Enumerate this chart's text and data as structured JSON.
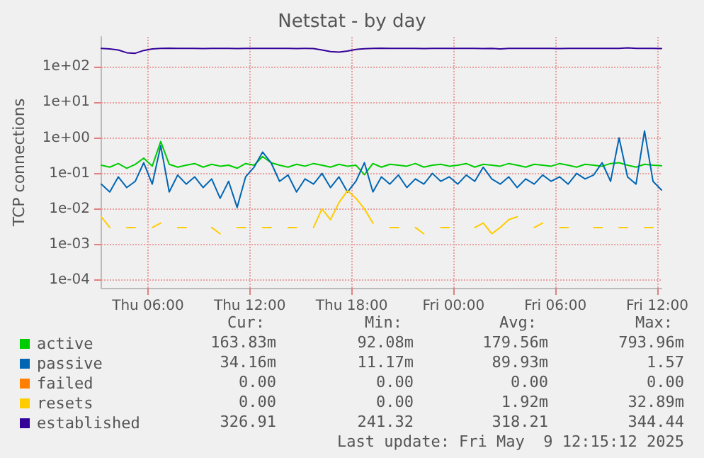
{
  "chart_data": {
    "type": "line",
    "title": "Netstat - by day",
    "ylabel": "TCP connections",
    "log": "y",
    "grid": true,
    "legend": "bottom",
    "xlim": [
      "2025-05-08T03:15",
      "2025-05-09T12:15"
    ],
    "xticks": [
      {
        "value": "2025-05-08T06:00",
        "label": "Thu 06:00"
      },
      {
        "value": "2025-05-08T12:00",
        "label": "Thu 12:00"
      },
      {
        "value": "2025-05-08T18:00",
        "label": "Thu 18:00"
      },
      {
        "value": "2025-05-09T00:00",
        "label": "Fri 00:00"
      },
      {
        "value": "2025-05-09T06:00",
        "label": "Fri 06:00"
      },
      {
        "value": "2025-05-09T12:00",
        "label": "Fri 12:00"
      }
    ],
    "ylim": [
      6e-05,
      700
    ],
    "yticks": [
      {
        "value": 0.0001,
        "label": "1e-04"
      },
      {
        "value": 0.001,
        "label": "1e-03"
      },
      {
        "value": 0.01,
        "label": "1e-02"
      },
      {
        "value": 0.1,
        "label": "1e-01"
      },
      {
        "value": 1,
        "label": "1e+00"
      },
      {
        "value": 10,
        "label": "1e+01"
      },
      {
        "value": 100,
        "label": "1e+02"
      }
    ],
    "x": [
      "2025-05-08T03:15",
      "2025-05-08T03:45",
      "2025-05-08T04:15",
      "2025-05-08T04:45",
      "2025-05-08T05:15",
      "2025-05-08T05:45",
      "2025-05-08T06:15",
      "2025-05-08T06:45",
      "2025-05-08T07:15",
      "2025-05-08T07:45",
      "2025-05-08T08:15",
      "2025-05-08T08:45",
      "2025-05-08T09:15",
      "2025-05-08T09:45",
      "2025-05-08T10:15",
      "2025-05-08T10:45",
      "2025-05-08T11:15",
      "2025-05-08T11:45",
      "2025-05-08T12:15",
      "2025-05-08T12:45",
      "2025-05-08T13:15",
      "2025-05-08T13:45",
      "2025-05-08T14:15",
      "2025-05-08T14:45",
      "2025-05-08T15:15",
      "2025-05-08T15:45",
      "2025-05-08T16:15",
      "2025-05-08T16:45",
      "2025-05-08T17:15",
      "2025-05-08T17:45",
      "2025-05-08T18:15",
      "2025-05-08T18:45",
      "2025-05-08T19:15",
      "2025-05-08T19:45",
      "2025-05-08T20:15",
      "2025-05-08T20:45",
      "2025-05-08T21:15",
      "2025-05-08T21:45",
      "2025-05-08T22:15",
      "2025-05-08T22:45",
      "2025-05-08T23:15",
      "2025-05-08T23:45",
      "2025-05-09T00:15",
      "2025-05-09T00:45",
      "2025-05-09T01:15",
      "2025-05-09T01:45",
      "2025-05-09T02:15",
      "2025-05-09T02:45",
      "2025-05-09T03:15",
      "2025-05-09T03:45",
      "2025-05-09T04:15",
      "2025-05-09T04:45",
      "2025-05-09T05:15",
      "2025-05-09T05:45",
      "2025-05-09T06:15",
      "2025-05-09T06:45",
      "2025-05-09T07:15",
      "2025-05-09T07:45",
      "2025-05-09T08:15",
      "2025-05-09T08:45",
      "2025-05-09T09:15",
      "2025-05-09T09:45",
      "2025-05-09T10:15",
      "2025-05-09T10:45",
      "2025-05-09T11:15",
      "2025-05-09T11:45",
      "2025-05-09T12:15"
    ],
    "series": [
      {
        "name": "active",
        "color": "#00cc00",
        "values": [
          0.17,
          0.15,
          0.19,
          0.14,
          0.18,
          0.27,
          0.16,
          0.79,
          0.18,
          0.15,
          0.17,
          0.19,
          0.15,
          0.18,
          0.16,
          0.17,
          0.14,
          0.19,
          0.17,
          0.3,
          0.2,
          0.17,
          0.15,
          0.18,
          0.16,
          0.19,
          0.17,
          0.15,
          0.18,
          0.16,
          0.17,
          0.092,
          0.19,
          0.15,
          0.18,
          0.17,
          0.16,
          0.19,
          0.15,
          0.17,
          0.18,
          0.16,
          0.17,
          0.19,
          0.15,
          0.18,
          0.17,
          0.16,
          0.19,
          0.17,
          0.15,
          0.18,
          0.17,
          0.16,
          0.19,
          0.17,
          0.15,
          0.18,
          0.17,
          0.16,
          0.19,
          0.2,
          0.17,
          0.15,
          0.18,
          0.17,
          0.16383
        ]
      },
      {
        "name": "passive",
        "color": "#0066b3",
        "values": [
          0.05,
          0.03,
          0.08,
          0.04,
          0.06,
          0.2,
          0.05,
          0.6,
          0.03,
          0.09,
          0.05,
          0.08,
          0.04,
          0.07,
          0.02,
          0.06,
          0.011,
          0.08,
          0.15,
          0.4,
          0.2,
          0.06,
          0.09,
          0.03,
          0.07,
          0.05,
          0.1,
          0.04,
          0.08,
          0.03,
          0.06,
          0.2,
          0.03,
          0.08,
          0.05,
          0.09,
          0.04,
          0.07,
          0.05,
          0.1,
          0.06,
          0.08,
          0.05,
          0.09,
          0.06,
          0.15,
          0.07,
          0.05,
          0.08,
          0.04,
          0.07,
          0.05,
          0.09,
          0.06,
          0.08,
          0.05,
          0.1,
          0.07,
          0.09,
          0.2,
          0.06,
          1.0,
          0.08,
          0.05,
          1.57,
          0.06,
          0.03416
        ]
      },
      {
        "name": "failed",
        "color": "#ff8000",
        "values": [
          null,
          null,
          null,
          null,
          null,
          null,
          null,
          null,
          null,
          null,
          null,
          null,
          null,
          null,
          null,
          null,
          null,
          null,
          null,
          null,
          null,
          null,
          null,
          null,
          null,
          null,
          null,
          null,
          null,
          null,
          null,
          null,
          null,
          null,
          null,
          null,
          null,
          null,
          null,
          null,
          null,
          null,
          null,
          null,
          null,
          null,
          null,
          null,
          null,
          null,
          null,
          null,
          null,
          null,
          null,
          null,
          null,
          null,
          null,
          null,
          null,
          null,
          null,
          null,
          null,
          null,
          null
        ]
      },
      {
        "name": "resets",
        "color": "#ffcc00",
        "values": [
          0.006,
          0.003,
          null,
          0.003,
          0.003,
          null,
          0.003,
          0.004,
          null,
          0.003,
          0.003,
          null,
          null,
          0.003,
          0.002,
          null,
          0.003,
          0.003,
          null,
          0.003,
          0.003,
          null,
          0.003,
          0.003,
          null,
          0.003,
          0.01,
          0.005,
          0.015,
          0.03289,
          0.02,
          0.01,
          0.004,
          null,
          0.003,
          0.003,
          null,
          0.003,
          0.002,
          null,
          0.003,
          0.003,
          null,
          null,
          0.003,
          0.004,
          0.002,
          0.003,
          0.005,
          0.006,
          null,
          0.003,
          0.004,
          null,
          0.003,
          0.003,
          null,
          null,
          0.003,
          0.003,
          null,
          0.003,
          0.003,
          null,
          0.003,
          0.003,
          null
        ]
      },
      {
        "name": "established",
        "color": "#330099",
        "values": [
          330,
          320,
          300,
          250,
          241.32,
          290,
          320,
          330,
          335,
          330,
          332,
          330,
          328,
          330,
          331,
          330,
          329,
          330,
          331,
          330,
          330,
          331,
          330,
          329,
          330,
          328,
          300,
          270,
          260,
          280,
          310,
          325,
          330,
          335,
          330,
          331,
          330,
          332,
          329,
          330,
          331,
          330,
          332,
          330,
          331,
          329,
          330,
          320,
          330,
          331,
          330,
          332,
          330,
          331,
          328,
          330,
          331,
          330,
          332,
          330,
          331,
          330,
          344.44,
          330,
          331,
          330,
          326.91
        ]
      }
    ],
    "annotations": [
      "Cur:",
      "Min:",
      "Avg:",
      "Max:",
      "163.83m",
      "92.08m",
      "179.56m",
      "793.96m",
      "34.16m",
      "11.17m",
      "89.93m",
      "1.57",
      "0.00",
      "0.00",
      "0.00",
      "0.00",
      "0.00",
      "0.00",
      "1.92m",
      "32.89m",
      "326.91",
      "241.32",
      "318.21",
      "344.44",
      "Last update: Fri May  9 12:15:12 2025"
    ]
  }
}
